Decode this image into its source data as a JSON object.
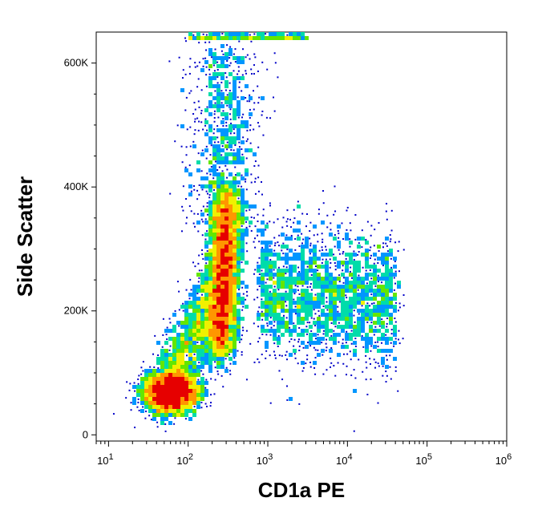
{
  "chart_data": {
    "type": "scatter",
    "subtype": "flow-cytometry density dot plot",
    "title": "",
    "xlabel": "CD1a PE",
    "ylabel": "Side Scatter",
    "x_scale": "log",
    "xlim": [
      7,
      1000000
    ],
    "ylim": [
      -10000,
      650000
    ],
    "x_ticks": [
      {
        "value": 10,
        "base": "10",
        "exp": "1"
      },
      {
        "value": 100,
        "base": "10",
        "exp": "2"
      },
      {
        "value": 1000,
        "base": "10",
        "exp": "3"
      },
      {
        "value": 10000,
        "base": "10",
        "exp": "4"
      },
      {
        "value": 100000,
        "base": "10",
        "exp": "5"
      },
      {
        "value": 1000000,
        "base": "10",
        "exp": "6"
      }
    ],
    "y_ticks": [
      {
        "value": 0,
        "label": "0"
      },
      {
        "value": 200000,
        "label": "200K"
      },
      {
        "value": 400000,
        "label": "400K"
      },
      {
        "value": 600000,
        "label": "600K"
      }
    ],
    "color_scale": [
      "#0000c8",
      "#0096ff",
      "#00dcaa",
      "#64e600",
      "#f0f000",
      "#ff9600",
      "#e60000"
    ],
    "grid": false,
    "legend": "none",
    "populations": [
      {
        "x_center": 60,
        "y_center": 65000,
        "relative_density": "highest",
        "color": "#e60000"
      },
      {
        "x_center": 250,
        "y_center": 250000,
        "relative_density": "high",
        "color": "#f0f000"
      },
      {
        "x_center": 3000,
        "y_center": 230000,
        "relative_density": "low",
        "color": "#0000c8"
      }
    ]
  }
}
